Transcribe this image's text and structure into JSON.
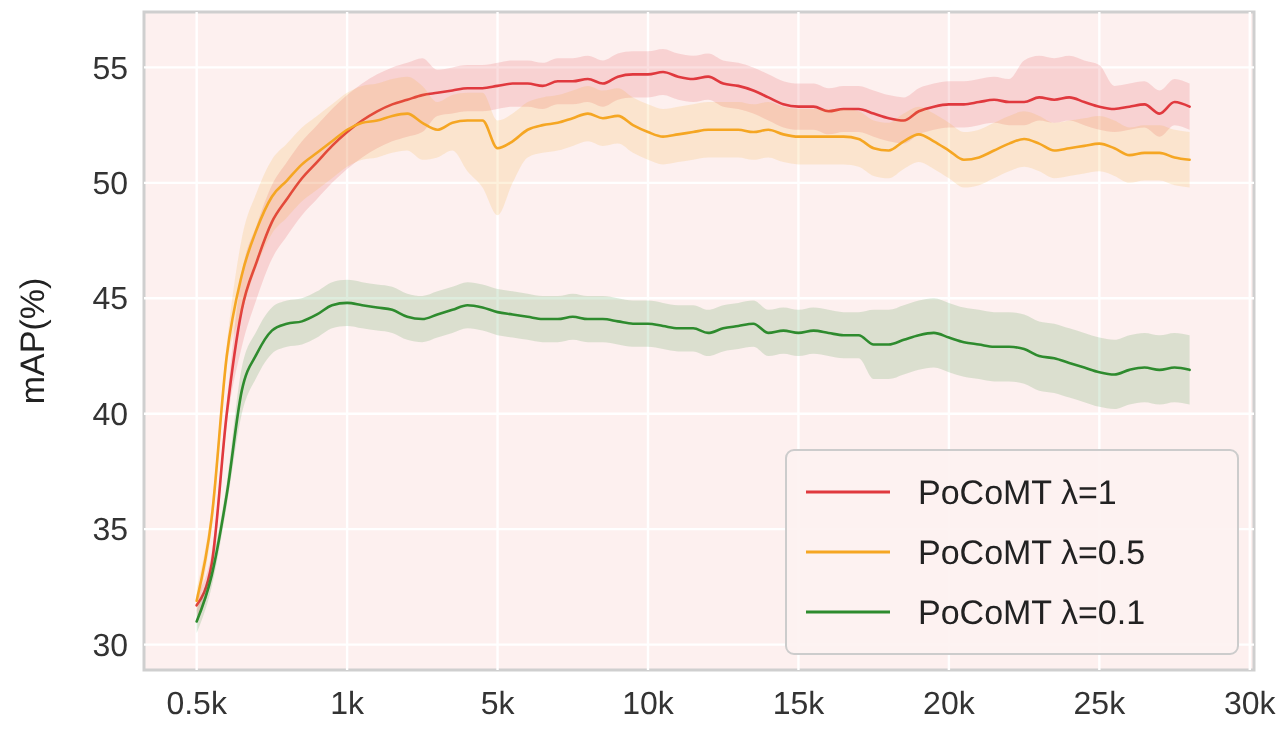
{
  "chart_data": {
    "type": "line",
    "ylabel": "mAP(%)",
    "categories": [
      "0.5k",
      null,
      null,
      null,
      null,
      null,
      null,
      null,
      null,
      null,
      "1k",
      null,
      null,
      null,
      null,
      null,
      null,
      null,
      null,
      null,
      "5k",
      null,
      null,
      null,
      null,
      null,
      null,
      null,
      null,
      null,
      "10k",
      null,
      null,
      null,
      null,
      null,
      null,
      null,
      null,
      null,
      "15k",
      null,
      null,
      null,
      null,
      null,
      null,
      null,
      null,
      null,
      "20k",
      null,
      null,
      null,
      null,
      null,
      null,
      null,
      null,
      null,
      "25k",
      null,
      null,
      null,
      null,
      null,
      null,
      null,
      null,
      null,
      "30k"
    ],
    "ylim": [
      28.9,
      57.4
    ],
    "yticks": [
      30,
      35,
      40,
      45,
      50,
      55
    ],
    "grid": true,
    "legend": "bottom right",
    "line_style": "solid",
    "series": [
      {
        "name": "PoCoMT λ=1",
        "color": "#e0393e",
        "values": [
          31.7,
          33.5,
          40.0,
          44.5,
          46.6,
          48.3,
          49.3,
          50.2,
          50.9,
          51.6,
          52.2,
          52.7,
          53.1,
          53.4,
          53.6,
          53.8,
          53.9,
          54.0,
          54.1,
          54.1,
          54.2,
          54.3,
          54.3,
          54.2,
          54.4,
          54.4,
          54.5,
          54.3,
          54.6,
          54.7,
          54.7,
          54.8,
          54.6,
          54.5,
          54.6,
          54.3,
          54.2,
          54.0,
          53.7,
          53.4,
          53.3,
          53.3,
          53.1,
          53.2,
          53.2,
          53.0,
          52.8,
          52.7,
          53.1,
          53.3,
          53.4,
          53.4,
          53.5,
          53.6,
          53.5,
          53.5,
          53.7,
          53.6,
          53.7,
          53.5,
          53.3,
          53.2,
          53.3,
          53.4,
          53.0,
          53.5,
          53.3,
          null,
          null,
          null,
          null
        ],
        "lower": [
          31.2,
          33.0,
          39.5,
          42.9,
          45.0,
          46.7,
          47.7,
          48.6,
          49.3,
          50.0,
          50.6,
          51.1,
          51.5,
          51.8,
          52.0,
          52.2,
          52.9,
          53.0,
          53.1,
          53.1,
          53.2,
          53.3,
          53.3,
          53.2,
          53.4,
          53.4,
          53.5,
          53.3,
          53.6,
          53.7,
          53.7,
          53.8,
          53.6,
          53.5,
          53.6,
          53.3,
          53.2,
          53.0,
          52.7,
          52.4,
          52.3,
          52.3,
          52.1,
          52.2,
          52.2,
          52.0,
          51.8,
          51.7,
          52.1,
          52.3,
          52.4,
          52.4,
          52.5,
          52.6,
          52.5,
          52.5,
          52.7,
          52.6,
          52.7,
          52.5,
          52.3,
          52.2,
          52.3,
          52.4,
          52.0,
          52.5,
          52.3,
          null,
          null,
          null,
          null
        ],
        "upper": [
          32.2,
          34.0,
          40.5,
          46.1,
          48.2,
          49.9,
          50.9,
          51.8,
          52.5,
          53.2,
          53.8,
          54.3,
          54.7,
          55.0,
          55.2,
          55.4,
          54.9,
          55.0,
          55.1,
          55.1,
          55.2,
          55.3,
          55.3,
          55.2,
          55.4,
          55.4,
          55.5,
          55.3,
          55.6,
          55.7,
          55.7,
          55.8,
          55.6,
          55.5,
          55.6,
          55.3,
          55.2,
          55.0,
          54.7,
          54.4,
          54.3,
          54.3,
          54.1,
          54.2,
          54.2,
          54.0,
          53.8,
          53.7,
          54.1,
          54.3,
          54.4,
          54.4,
          54.5,
          54.6,
          54.5,
          55.3,
          55.5,
          55.4,
          55.5,
          55.3,
          55.1,
          54.2,
          54.3,
          54.4,
          54.0,
          54.5,
          54.3,
          null,
          null,
          null,
          null
        ]
      },
      {
        "name": "PoCoMT λ=0.5",
        "color": "#f5a623",
        "values": [
          31.9,
          35.5,
          42.5,
          46.0,
          48.0,
          49.4,
          50.1,
          50.8,
          51.3,
          51.8,
          52.3,
          52.6,
          52.7,
          52.9,
          53.0,
          52.6,
          52.3,
          52.6,
          52.7,
          52.7,
          51.5,
          51.8,
          52.3,
          52.5,
          52.6,
          52.8,
          53.0,
          52.8,
          52.9,
          52.5,
          52.2,
          52.0,
          52.1,
          52.2,
          52.3,
          52.3,
          52.3,
          52.2,
          52.3,
          52.1,
          52.0,
          52.0,
          52.0,
          52.0,
          51.9,
          51.5,
          51.4,
          51.8,
          52.1,
          51.8,
          51.4,
          51.0,
          51.1,
          51.4,
          51.7,
          51.9,
          51.7,
          51.4,
          51.5,
          51.6,
          51.7,
          51.5,
          51.2,
          51.3,
          51.3,
          51.1,
          51.0,
          null,
          null,
          null,
          null
        ],
        "lower": [
          31.4,
          35.0,
          42.0,
          44.4,
          46.4,
          47.8,
          48.5,
          49.2,
          49.7,
          50.2,
          50.7,
          51.0,
          51.1,
          51.3,
          51.4,
          51.0,
          51.1,
          51.4,
          50.5,
          49.8,
          48.6,
          50.0,
          51.1,
          51.3,
          51.4,
          51.6,
          51.8,
          51.6,
          51.7,
          51.3,
          51.0,
          50.8,
          50.9,
          51.0,
          51.1,
          51.1,
          51.1,
          51.0,
          51.1,
          50.9,
          50.8,
          50.8,
          50.8,
          50.8,
          50.7,
          50.3,
          50.2,
          50.6,
          50.9,
          50.6,
          50.2,
          49.8,
          49.9,
          50.2,
          50.5,
          50.7,
          50.5,
          50.2,
          50.3,
          50.4,
          50.5,
          50.3,
          50.0,
          50.1,
          50.1,
          49.9,
          49.8,
          null,
          null,
          null,
          null
        ],
        "upper": [
          32.4,
          36.0,
          43.0,
          47.6,
          49.6,
          51.0,
          51.7,
          52.4,
          52.9,
          53.4,
          53.9,
          54.2,
          54.3,
          54.5,
          54.6,
          54.2,
          53.5,
          53.8,
          53.9,
          53.9,
          52.7,
          53.0,
          53.5,
          53.7,
          53.8,
          54.0,
          54.2,
          54.0,
          54.1,
          53.7,
          53.4,
          53.2,
          53.3,
          53.4,
          53.5,
          53.5,
          53.5,
          53.4,
          53.5,
          53.3,
          53.2,
          53.2,
          53.2,
          53.2,
          53.1,
          52.7,
          52.6,
          53.0,
          53.3,
          53.0,
          52.6,
          52.2,
          52.3,
          52.6,
          52.9,
          53.1,
          52.9,
          52.6,
          52.7,
          52.8,
          52.9,
          52.7,
          52.4,
          52.5,
          52.5,
          52.3,
          52.2,
          null,
          null,
          null,
          null
        ]
      },
      {
        "name": "PoCoMT λ=0.1",
        "color": "#2e8b2e",
        "values": [
          31.0,
          33.0,
          36.5,
          41.0,
          42.6,
          43.6,
          43.9,
          44.0,
          44.3,
          44.7,
          44.8,
          44.7,
          44.6,
          44.5,
          44.2,
          44.1,
          44.3,
          44.5,
          44.7,
          44.6,
          44.4,
          44.3,
          44.2,
          44.1,
          44.1,
          44.2,
          44.1,
          44.1,
          44.0,
          43.9,
          43.9,
          43.8,
          43.7,
          43.7,
          43.5,
          43.7,
          43.8,
          43.9,
          43.5,
          43.6,
          43.5,
          43.6,
          43.5,
          43.4,
          43.4,
          43.0,
          43.0,
          43.2,
          43.4,
          43.5,
          43.3,
          43.1,
          43.0,
          42.9,
          42.9,
          42.8,
          42.5,
          42.4,
          42.2,
          42.0,
          41.8,
          41.7,
          41.9,
          42.0,
          41.9,
          42.0,
          41.9,
          null,
          null,
          null,
          null
        ],
        "lower": [
          30.5,
          32.5,
          36.0,
          40.0,
          41.6,
          42.6,
          42.9,
          43.0,
          43.3,
          43.7,
          43.8,
          43.7,
          43.6,
          43.5,
          43.2,
          43.1,
          43.3,
          43.5,
          43.7,
          43.6,
          43.4,
          43.3,
          43.2,
          43.1,
          43.1,
          43.2,
          43.1,
          43.1,
          43.0,
          42.9,
          42.9,
          42.8,
          42.7,
          42.7,
          42.5,
          42.7,
          42.8,
          42.9,
          42.5,
          42.6,
          42.5,
          42.6,
          42.5,
          42.4,
          42.4,
          41.5,
          41.5,
          41.7,
          41.9,
          42.0,
          41.8,
          41.6,
          41.5,
          41.4,
          41.4,
          41.3,
          41.0,
          40.9,
          40.7,
          40.5,
          40.3,
          40.2,
          40.4,
          40.5,
          40.4,
          40.5,
          40.4,
          null,
          null,
          null,
          null
        ],
        "upper": [
          31.5,
          33.5,
          37.0,
          42.0,
          43.6,
          44.6,
          44.9,
          45.0,
          45.3,
          45.7,
          45.8,
          45.7,
          45.6,
          45.5,
          45.2,
          45.1,
          45.3,
          45.5,
          45.7,
          45.6,
          45.4,
          45.3,
          45.2,
          45.1,
          45.1,
          45.2,
          45.1,
          45.1,
          45.0,
          44.9,
          44.9,
          44.8,
          44.7,
          44.7,
          44.5,
          44.7,
          44.8,
          44.9,
          44.5,
          44.6,
          44.5,
          44.6,
          44.5,
          44.4,
          44.4,
          44.5,
          44.5,
          44.7,
          44.9,
          45.0,
          44.8,
          44.6,
          44.5,
          44.4,
          44.4,
          44.3,
          44.0,
          43.9,
          43.7,
          43.5,
          43.3,
          43.2,
          43.4,
          43.5,
          43.4,
          43.5,
          43.4,
          null,
          null,
          null,
          null
        ]
      }
    ]
  }
}
